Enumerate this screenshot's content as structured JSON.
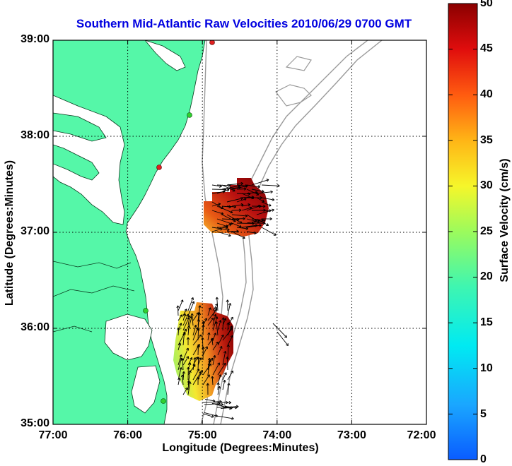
{
  "title": "Southern Mid-Atlantic Raw Velocities 2010/06/29 0700 GMT",
  "xlabel": "Longitude (Degrees:Minutes)",
  "ylabel": "Latitude (Degrees:Minutes)",
  "colorbar_label": "Surface Velocity (cm/s)",
  "x_ticks": [
    "77:00",
    "76:00",
    "75:00",
    "74:00",
    "73:00",
    "72:00"
  ],
  "y_ticks": [
    "39:00",
    "38:00",
    "37:00",
    "36:00",
    "35:00"
  ],
  "colorbar_ticks": [
    "50",
    "45",
    "40",
    "35",
    "30",
    "25",
    "20",
    "15",
    "10",
    "5",
    "0"
  ],
  "colors": {
    "land": "#55f7a8",
    "title": "#0000e0",
    "bathymetry": "#9a9a9a",
    "site_red": "#e02020",
    "site_green": "#30d030"
  },
  "chart_data": {
    "type": "heatmap",
    "title": "Southern Mid-Atlantic Raw Velocities 2010/06/29 0700 GMT",
    "xlabel": "Longitude (Degrees:Minutes)",
    "ylabel": "Latitude (Degrees:Minutes)",
    "xlim": [
      "77:00",
      "72:00"
    ],
    "ylim": [
      "35:00",
      "39:00"
    ],
    "colorbar_range": [
      0,
      50
    ],
    "colorbar_units": "cm/s",
    "grid": true
  }
}
